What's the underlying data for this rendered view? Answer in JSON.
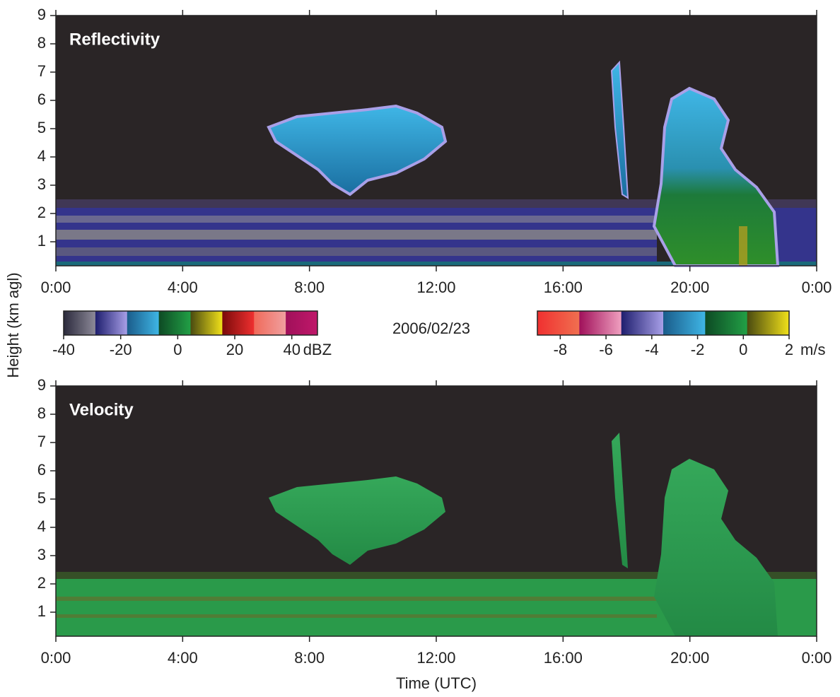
{
  "chart_data": [
    {
      "type": "heatmap",
      "title": "Reflectivity",
      "xlim": [
        0,
        24
      ],
      "xticks": [
        {
          "value": 0,
          "label": "0:00"
        },
        {
          "value": 4,
          "label": "4:00"
        },
        {
          "value": 8,
          "label": "8:00"
        },
        {
          "value": 12,
          "label": "12:00"
        },
        {
          "value": 16,
          "label": "16:00"
        },
        {
          "value": 20,
          "label": "20:00"
        },
        {
          "value": 24,
          "label": "0:00"
        }
      ],
      "ylim": [
        0.15,
        9
      ],
      "yticks": [
        1,
        2,
        3,
        4,
        5,
        6,
        7,
        8,
        9
      ],
      "colorbar": {
        "lim": [
          -40,
          49
        ],
        "ticks": [
          -40,
          -20,
          0,
          20,
          40
        ],
        "unit": "dBZ",
        "colors": [
          "#2b2a3c",
          "#8d8a99",
          "#1e1e6e",
          "#a9a0e8",
          "#1a5c8a",
          "#3fb6e6",
          "#0d4a24",
          "#22a046",
          "#4a4a10",
          "#f2e21a",
          "#7a0a0a",
          "#f03030",
          "#f06a5a",
          "#f0a0a0",
          "#a0105a",
          "#c0186a"
        ]
      }
    },
    {
      "type": "heatmap",
      "title": "Velocity",
      "xlim": [
        0,
        24
      ],
      "xticks": [
        {
          "value": 0,
          "label": "0:00"
        },
        {
          "value": 4,
          "label": "4:00"
        },
        {
          "value": 8,
          "label": "8:00"
        },
        {
          "value": 12,
          "label": "12:00"
        },
        {
          "value": 16,
          "label": "16:00"
        },
        {
          "value": 20,
          "label": "20:00"
        },
        {
          "value": 24,
          "label": "0:00"
        }
      ],
      "ylim": [
        0.15,
        9
      ],
      "yticks": [
        1,
        2,
        3,
        4,
        5,
        6,
        7,
        8,
        9
      ],
      "colorbar": {
        "lim": [
          -9,
          2
        ],
        "ticks": [
          -8,
          -6,
          -4,
          -2,
          0,
          2
        ],
        "unit": "m/s",
        "colors": [
          "#f03030",
          "#f07050",
          "#a0105a",
          "#f0a0c0",
          "#1e1e6e",
          "#a9a0e8",
          "#1a5c8a",
          "#3fb6e6",
          "#0d4a24",
          "#22a046",
          "#4a4a10",
          "#f2e21a"
        ]
      }
    }
  ],
  "y_label": "Height (km agl)",
  "x_label": "Time (UTC)",
  "date": "2006/02/23"
}
